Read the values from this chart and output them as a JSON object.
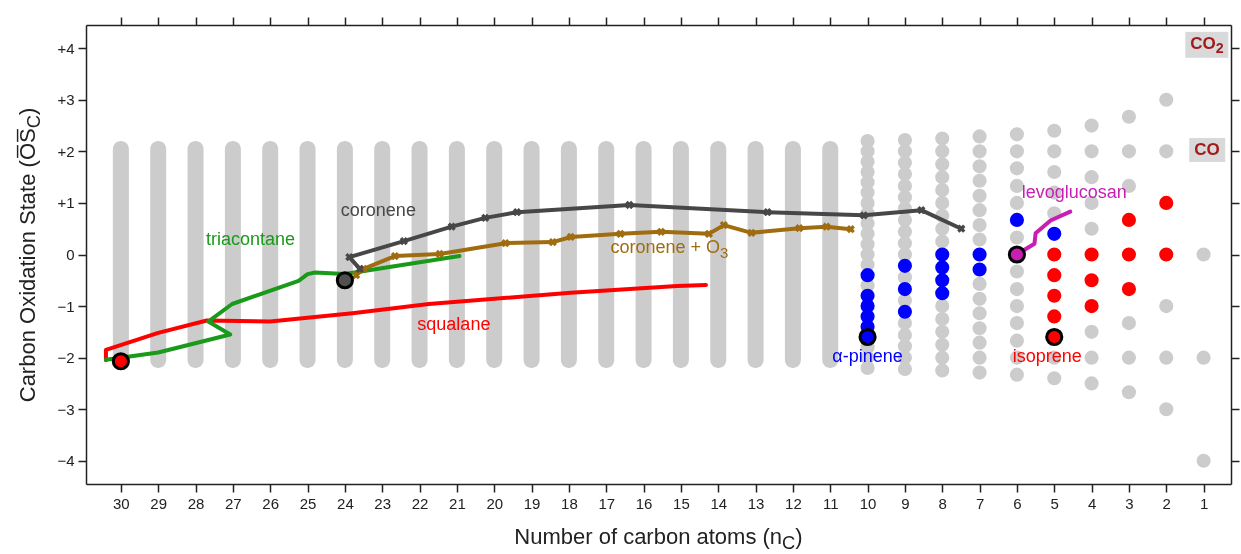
{
  "chart_data": {
    "type": "scatter",
    "xlabel": "Number of carbon atoms (n$_{C}$)",
    "ylabel": "Carbon Oxidation State (O̅S̅$_{C}$)",
    "xlim": [
      30.8,
      0.4
    ],
    "xticks": [
      1,
      2,
      3,
      4,
      5,
      6,
      7,
      8,
      9,
      10,
      11,
      12,
      13,
      14,
      15,
      16,
      17,
      18,
      19,
      20,
      21,
      22,
      23,
      24,
      25,
      26,
      27,
      28,
      29,
      30
    ],
    "ylim": [
      -4.45,
      4.45
    ],
    "yticks": [
      -4,
      -3,
      -2,
      -1,
      0,
      {
        "value": 1,
        "label": "+1"
      },
      {
        "value": 2,
        "label": "+2"
      },
      {
        "value": 3,
        "label": "+3"
      },
      {
        "value": 4,
        "label": "+4"
      }
    ],
    "grid": false,
    "annotations": [
      "CO$_{2}$",
      "CO"
    ],
    "series": [
      {
        "type": "bar",
        "color": "#cccccc",
        "x": [
          30,
          29,
          28,
          27,
          26,
          25,
          24,
          23,
          22,
          21,
          20,
          19,
          18,
          17,
          16,
          15,
          14,
          13,
          12,
          11
        ],
        "base": [
          -2.2,
          -2.2,
          -2.2,
          -2.2,
          -2.2,
          -2.2,
          -2.2,
          -2.2,
          -2.2,
          -2.2,
          -2.2,
          -2.2,
          -2.2,
          -2.2,
          -2.2,
          -2.2,
          -2.2,
          -2.2,
          -2.2,
          -2.2
        ],
        "values": [
          4.4,
          4.4,
          4.4,
          4.4,
          4.4,
          4.4,
          4.4,
          4.4,
          4.4,
          4.4,
          4.4,
          4.4,
          4.4,
          4.4,
          4.4,
          4.4,
          4.4,
          4.4,
          4.4,
          4.4
        ]
      },
      {
        "color": "#cccccc",
        "x": [
          10,
          10,
          10,
          10,
          10,
          10,
          10,
          10,
          10,
          10,
          10,
          10,
          10,
          10,
          10,
          10,
          10,
          9,
          9,
          9,
          9,
          9,
          9,
          9,
          9,
          9,
          9,
          9,
          9,
          9,
          9,
          9,
          9,
          9,
          9,
          8,
          8,
          8,
          8,
          8,
          8,
          8,
          8,
          8,
          8,
          8,
          8,
          8,
          8,
          8,
          7,
          7,
          7,
          7,
          7,
          7,
          7,
          7,
          7,
          7,
          7,
          7,
          7,
          7,
          7,
          6,
          6,
          6,
          6,
          6,
          6,
          6,
          6,
          6,
          6,
          6,
          6,
          6,
          5,
          5,
          5,
          5,
          5,
          5,
          5,
          4,
          4,
          4,
          4,
          4,
          4,
          4,
          4,
          3,
          3,
          3,
          3,
          3,
          3,
          2,
          2,
          2,
          2,
          2,
          1,
          1,
          1
        ],
        "values": [
          2.2,
          2,
          1.8,
          1.6,
          1.4,
          1.2,
          1,
          0.8,
          0.6,
          0.4,
          0.2,
          0,
          -0.2,
          -0.6,
          -1.8,
          -2,
          -2.2,
          2.22,
          2,
          1.78,
          1.56,
          1.33,
          1.11,
          0.89,
          0.67,
          0.44,
          0.22,
          0,
          -0.44,
          -0.89,
          -1.33,
          -1.56,
          -1.78,
          -2,
          -2.22,
          2.25,
          2,
          1.75,
          1.5,
          1.25,
          1,
          0.75,
          0.5,
          0.25,
          -1,
          -1.25,
          -1.5,
          -1.75,
          -2,
          -2.25,
          2.29,
          2,
          1.71,
          1.43,
          1.14,
          0.86,
          0.57,
          0.29,
          -0.57,
          -0.86,
          -1.14,
          -1.43,
          -1.71,
          -2,
          -2.29,
          2.33,
          2,
          1.67,
          1.33,
          1,
          0.33,
          -0.33,
          -0.67,
          -1,
          -1.33,
          -1.67,
          -2,
          -2.33,
          2.4,
          2,
          1.6,
          1.2,
          0.8,
          -2,
          -2.4,
          2.5,
          2,
          1.5,
          1,
          0.5,
          -1.5,
          -2,
          -2.5,
          2.67,
          2,
          1.33,
          -1.33,
          -2,
          -2.67,
          3,
          2,
          -1,
          -2,
          -3,
          0,
          -2,
          -4
        ]
      },
      {
        "type": "line",
        "name": "squalane",
        "color": "#ff0000",
        "x": [
          30.4,
          30.4,
          29,
          27.7,
          26,
          23.8,
          21.75,
          17.95,
          15.1,
          14.33
        ],
        "values": [
          -2.05,
          -1.85,
          -1.52,
          -1.28,
          -1.3,
          -1.14,
          -0.96,
          -0.74,
          -0.61,
          -0.59
        ]
      },
      {
        "type": "line",
        "name": "triacontane",
        "color": "#1a9a1a",
        "x": [
          30.4,
          29,
          27.07,
          27.66,
          27.02,
          25.24,
          25,
          24.8,
          24,
          20.93
        ],
        "values": [
          -2.04,
          -1.9,
          -1.55,
          -1.3,
          -0.96,
          -0.51,
          -0.38,
          -0.35,
          -0.38,
          -0.03
        ]
      },
      {
        "type": "line",
        "name": "coronene + O$_{3}$",
        "color": "#a06c10",
        "marker": "cross",
        "x": [
          23.7,
          23.5,
          22.66,
          21.46,
          19.7,
          18.43,
          17.95,
          16.62,
          15.53,
          14.25,
          13.85,
          13.11,
          11.83,
          11.1,
          10.45
        ],
        "values": [
          -0.4,
          -0.28,
          -0.03,
          0.01,
          0.22,
          0.24,
          0.34,
          0.4,
          0.44,
          0.4,
          0.57,
          0.42,
          0.51,
          0.54,
          0.49
        ]
      },
      {
        "type": "line",
        "name": "coronene",
        "color": "#474747",
        "marker": "cross",
        "x": [
          23.6,
          23.88,
          22.42,
          21.14,
          20.24,
          19.39,
          16.38,
          12.68,
          10.1,
          8.56,
          7.49
        ],
        "values": [
          -0.28,
          -0.05,
          0.26,
          0.54,
          0.71,
          0.82,
          0.96,
          0.82,
          0.76,
          0.86,
          0.5
        ]
      },
      {
        "type": "line",
        "name": "levoglucosan",
        "color": "#c81eb4",
        "x": [
          5.92,
          5.53,
          5.5,
          5.1,
          4.57
        ],
        "values": [
          0.04,
          0.21,
          0.41,
          0.66,
          0.83
        ]
      },
      {
        "name": "α-pinene",
        "color": "#0000ff",
        "x": [
          10,
          10,
          10,
          10,
          10,
          9,
          9,
          9,
          8,
          8,
          8,
          8,
          7,
          7,
          6,
          5
        ],
        "values": [
          -0.4,
          -0.8,
          -1,
          -1.2,
          -1.4,
          -0.22,
          -0.67,
          -1.11,
          0,
          -0.25,
          -0.5,
          -0.75,
          0,
          -0.29,
          0.67,
          0.4
        ]
      },
      {
        "name": "isoprene",
        "color": "#ff0000",
        "x": [
          5,
          5,
          5,
          5,
          4,
          4,
          4,
          3,
          3,
          3,
          2,
          2
        ],
        "values": [
          0,
          -0.4,
          -0.8,
          -1.2,
          0,
          -0.5,
          -1,
          0.67,
          0,
          -0.67,
          1,
          0
        ]
      },
      {
        "x": [
          30,
          24,
          10,
          6,
          5
        ],
        "values": [
          -2.07,
          -0.5,
          -1.6,
          0,
          -1.6
        ],
        "colors": [
          "#ff0000",
          "#505050",
          "#0000ff",
          "#c81eb4",
          "#ff0000"
        ]
      }
    ]
  }
}
